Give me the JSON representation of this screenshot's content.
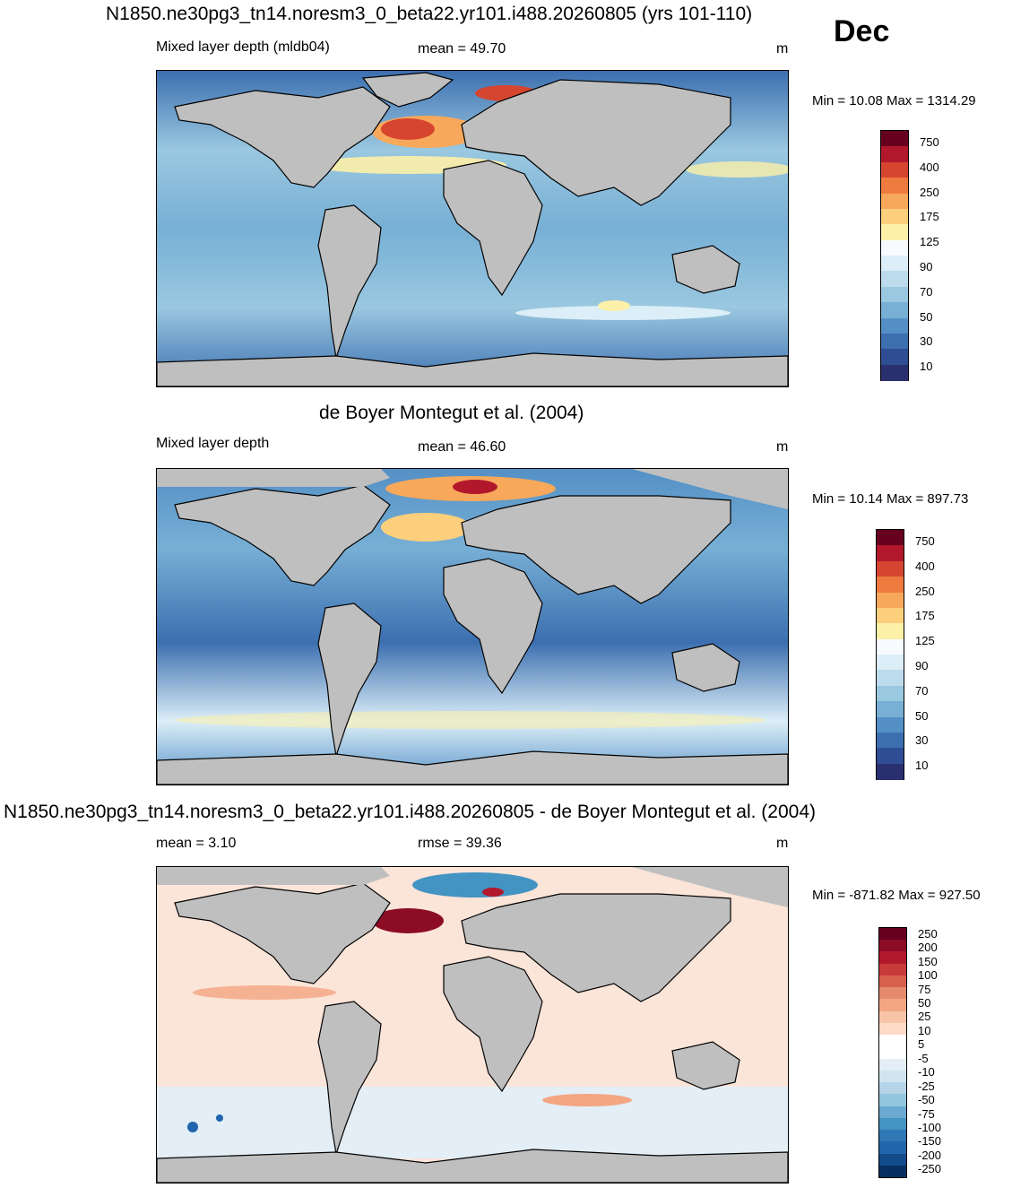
{
  "month": "Dec",
  "panels": [
    {
      "title": "N1850.ne30pg3_tn14.noresm3_0_beta22.yr101.i488.20260805 (yrs 101-110)",
      "left_label": "Mixed layer depth (mldb04)",
      "center_label": "mean =  49.70",
      "units": "m",
      "minmax": "Min =  10.08 Max = 1314.29",
      "colorbar_labels": [
        "750",
        "400",
        "250",
        "175",
        "125",
        "90",
        "70",
        "50",
        "30",
        "10"
      ],
      "colorbar_colors": [
        "#67001f",
        "#b2182b",
        "#d6452f",
        "#ef7a3f",
        "#f8a85a",
        "#fbcf7c",
        "#fdf0a8",
        "#f7fbff",
        "#dceef7",
        "#bcdced",
        "#9ac8e0",
        "#77afd5",
        "#5490c6",
        "#3c6fb0",
        "#2f4d93",
        "#2a2f70"
      ]
    },
    {
      "title": "de Boyer Montegut et al. (2004)",
      "left_label": "Mixed layer depth",
      "center_label": "mean =  46.60",
      "units": "m",
      "minmax": "Min =  10.14 Max = 897.73",
      "colorbar_labels": [
        "750",
        "400",
        "250",
        "175",
        "125",
        "90",
        "70",
        "50",
        "30",
        "10"
      ],
      "colorbar_colors": [
        "#67001f",
        "#b2182b",
        "#d6452f",
        "#ef7a3f",
        "#f8a85a",
        "#fbcf7c",
        "#fdf0a8",
        "#f7fbff",
        "#dceef7",
        "#bcdced",
        "#9ac8e0",
        "#77afd5",
        "#5490c6",
        "#3c6fb0",
        "#2f4d93",
        "#2a2f70"
      ]
    },
    {
      "title": "N1850.ne30pg3_tn14.noresm3_0_beta22.yr101.i488.20260805 - de Boyer Montegut et al. (2004)",
      "left_label": "mean =   3.10",
      "center_label": "rmse =  39.36",
      "units": "m",
      "minmax": "Min = -871.82 Max = 927.50",
      "colorbar_labels": [
        "250",
        "200",
        "150",
        "100",
        "75",
        "50",
        "25",
        "10",
        "5",
        "-5",
        "-10",
        "-25",
        "-50",
        "-75",
        "-100",
        "-150",
        "-200",
        "-250"
      ],
      "colorbar_colors": [
        "#67001f",
        "#8c0c25",
        "#b2182b",
        "#c83b3b",
        "#d6604d",
        "#e68a6e",
        "#f4a582",
        "#f8c4a8",
        "#fddbc7",
        "#ffffff",
        "#ffffff",
        "#e3eef6",
        "#d1e5f0",
        "#b5d4e8",
        "#92c5de",
        "#6aaad0",
        "#4393c3",
        "#2f78b5",
        "#2166ac",
        "#124a8a",
        "#053061"
      ]
    }
  ]
}
